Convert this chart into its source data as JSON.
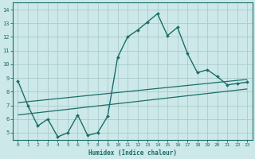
{
  "xlabel": "Humidex (Indice chaleur)",
  "ylabel": "",
  "background_color": "#cce8e8",
  "grid_color": "#aacccc",
  "line_color": "#1a6e6a",
  "xlim": [
    -0.5,
    23.5
  ],
  "ylim": [
    4.5,
    14.5
  ],
  "xticks": [
    0,
    1,
    2,
    3,
    4,
    5,
    6,
    7,
    8,
    9,
    10,
    11,
    12,
    13,
    14,
    15,
    16,
    17,
    18,
    19,
    20,
    21,
    22,
    23
  ],
  "yticks": [
    5,
    6,
    7,
    8,
    9,
    10,
    11,
    12,
    13,
    14
  ],
  "line1_x": [
    0,
    1,
    2,
    3,
    4,
    5,
    6,
    7,
    8,
    9,
    10,
    11,
    12,
    13,
    14,
    15,
    16,
    17,
    18,
    19,
    20,
    21,
    22,
    23
  ],
  "line1_y": [
    8.8,
    7.0,
    5.5,
    6.0,
    4.7,
    5.0,
    6.3,
    4.8,
    5.0,
    6.2,
    10.5,
    12.0,
    12.5,
    13.1,
    13.7,
    12.1,
    12.7,
    10.8,
    9.4,
    9.6,
    9.1,
    8.5,
    8.6,
    8.7
  ],
  "line2_x": [
    0,
    23
  ],
  "line2_y": [
    7.2,
    8.9
  ],
  "line3_x": [
    0,
    23
  ],
  "line3_y": [
    6.3,
    8.2
  ]
}
